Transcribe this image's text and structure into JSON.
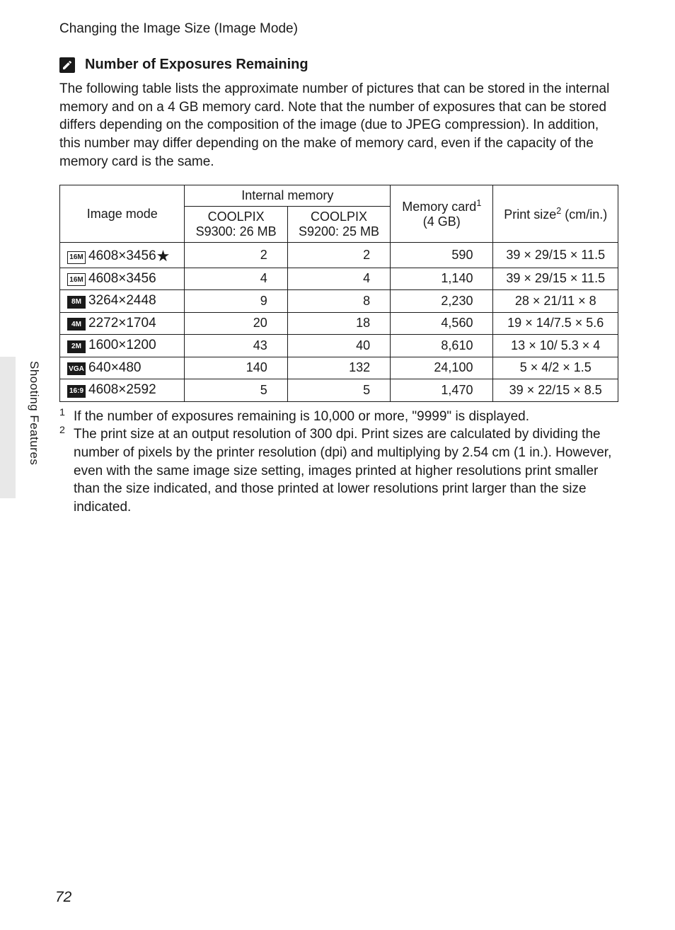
{
  "page": {
    "topHeading": "Changing the Image Size (Image Mode)",
    "sectionHeading": "Number of Exposures Remaining",
    "intro": "The following table lists the approximate number of pictures that can be stored in the internal memory and on a 4 GB memory card.  Note that the number of exposures that can be stored differs depending on the composition of the image (due to JPEG compression). In addition, this number may differ depending on the make of memory card, even if the capacity of the memory card is the same.",
    "sideLabel": "Shooting Features",
    "pageNumber": "72"
  },
  "table": {
    "headers": {
      "imageMode": "Image mode",
      "internalMemory": "Internal memory",
      "coolpix1_line1": "COOLPIX",
      "coolpix1_line2": "S9300: 26 MB",
      "coolpix2_line1": "COOLPIX",
      "coolpix2_line2": "S9200: 25 MB",
      "memoryCard_line1": "Memory card",
      "memoryCard_line2": "(4 GB)",
      "memoryCard_sup": "1",
      "printSize": "Print size",
      "printSize_sup": "2",
      "printSize_unit": " (cm/in.)"
    },
    "rows": [
      {
        "iconText": "16M",
        "iconFilled": false,
        "modeText": "4608×3456",
        "star": true,
        "int1": "2",
        "int2": "2",
        "mem": "590",
        "print": "39 × 29/15 × 11.5"
      },
      {
        "iconText": "16M",
        "iconFilled": false,
        "modeText": "4608×3456",
        "star": false,
        "int1": "4",
        "int2": "4",
        "mem": "1,140",
        "print": "39 × 29/15 × 11.5"
      },
      {
        "iconText": "8M",
        "iconFilled": true,
        "modeText": "3264×2448",
        "star": false,
        "int1": "9",
        "int2": "8",
        "mem": "2,230",
        "print": "28 × 21/11 × 8"
      },
      {
        "iconText": "4M",
        "iconFilled": true,
        "modeText": "2272×1704",
        "star": false,
        "int1": "20",
        "int2": "18",
        "mem": "4,560",
        "print": "19 × 14/7.5 × 5.6"
      },
      {
        "iconText": "2M",
        "iconFilled": true,
        "modeText": "1600×1200",
        "star": false,
        "int1": "43",
        "int2": "40",
        "mem": "8,610",
        "print": "13 × 10/ 5.3 × 4"
      },
      {
        "iconText": "VGA",
        "iconFilled": true,
        "modeText": "640×480",
        "star": false,
        "int1": "140",
        "int2": "132",
        "mem": "24,100",
        "print": "5 × 4/2 × 1.5"
      },
      {
        "iconText": "16:9",
        "iconFilled": true,
        "modeText": "4608×2592",
        "star": false,
        "int1": "5",
        "int2": "5",
        "mem": "1,470",
        "print": "39 × 22/15 × 8.5"
      }
    ]
  },
  "footnotes": {
    "fn1_num": "1",
    "fn1_text": "If the number of exposures remaining is 10,000 or more, \"9999\" is displayed.",
    "fn2_num": "2",
    "fn2_text": "The print size at an output resolution of 300 dpi. Print sizes are calculated by dividing the number of pixels by the printer resolution (dpi) and multiplying by 2.54 cm (1 in.). However, even with the same image size setting, images printed at higher resolutions print smaller than the size indicated, and those printed at lower resolutions print larger than the size indicated."
  },
  "colors": {
    "text": "#1a1a1a",
    "background": "#ffffff",
    "sideTab": "#e8e8e8",
    "border": "#1a1a1a"
  }
}
